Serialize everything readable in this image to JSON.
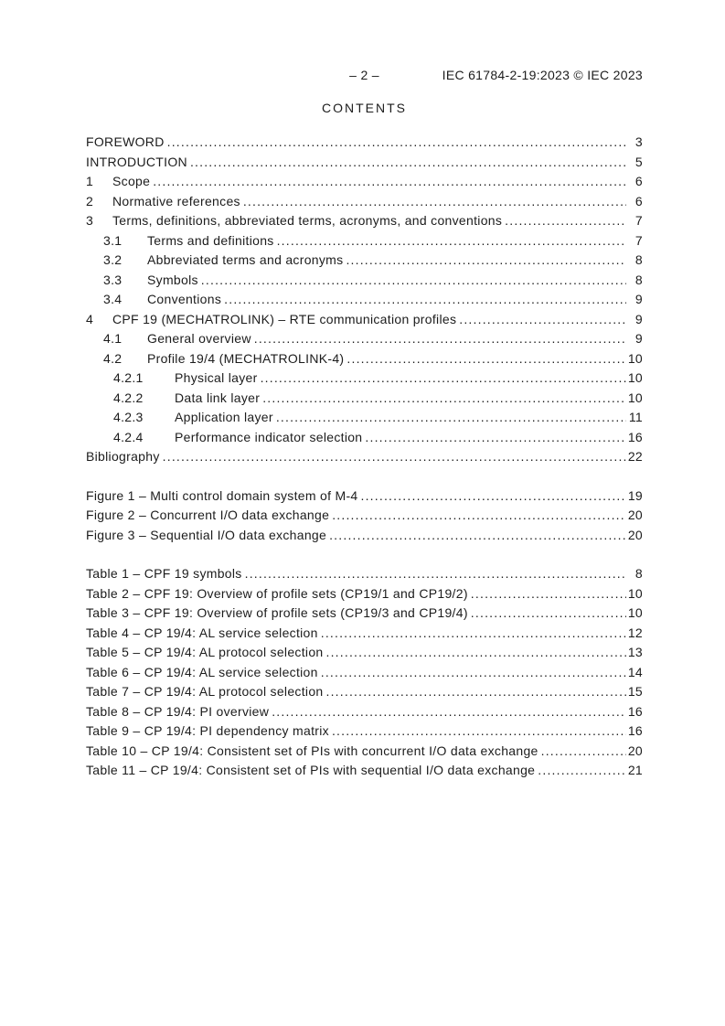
{
  "header": {
    "page_marker": "– 2 –",
    "doc_reference": "IEC 61784-2-19:2023 © IEC 2023"
  },
  "title": "CONTENTS",
  "toc": {
    "main": [
      {
        "level": 0,
        "num": "",
        "title": "FOREWORD",
        "page": "3"
      },
      {
        "level": 0,
        "num": "",
        "title": "INTRODUCTION",
        "page": "5"
      },
      {
        "level": 1,
        "num": "1",
        "title": "Scope",
        "page": "6"
      },
      {
        "level": 1,
        "num": "2",
        "title": "Normative references",
        "page": "6"
      },
      {
        "level": 1,
        "num": "3",
        "title": "Terms, definitions, abbreviated terms, acronyms, and conventions",
        "page": "7"
      },
      {
        "level": 2,
        "num": "3.1",
        "title": "Terms and definitions",
        "page": "7"
      },
      {
        "level": 2,
        "num": "3.2",
        "title": "Abbreviated terms and acronyms",
        "page": "8"
      },
      {
        "level": 2,
        "num": "3.3",
        "title": "Symbols",
        "page": "8"
      },
      {
        "level": 2,
        "num": "3.4",
        "title": "Conventions",
        "page": "9"
      },
      {
        "level": 1,
        "num": "4",
        "title": "CPF 19 (MECHATROLINK) – RTE communication profiles",
        "page": "9"
      },
      {
        "level": 2,
        "num": "4.1",
        "title": "General overview",
        "page": "9"
      },
      {
        "level": 2,
        "num": "4.2",
        "title": "Profile 19/4 (MECHATROLINK-4)",
        "page": "10"
      },
      {
        "level": 3,
        "num": "4.2.1",
        "title": "Physical layer",
        "page": "10"
      },
      {
        "level": 3,
        "num": "4.2.2",
        "title": "Data link layer",
        "page": "10"
      },
      {
        "level": 3,
        "num": "4.2.3",
        "title": "Application layer",
        "page": "11"
      },
      {
        "level": 3,
        "num": "4.2.4",
        "title": "Performance indicator selection",
        "page": "16"
      },
      {
        "level": 0,
        "num": "",
        "title": "Bibliography",
        "page": "22"
      }
    ],
    "figures": [
      {
        "level": 0,
        "num": "",
        "title": "Figure 1 – Multi control domain system of M-4",
        "page": "19"
      },
      {
        "level": 0,
        "num": "",
        "title": "Figure 2 – Concurrent I/O data exchange",
        "page": "20"
      },
      {
        "level": 0,
        "num": "",
        "title": "Figure 3 – Sequential I/O data exchange",
        "page": "20"
      }
    ],
    "tables": [
      {
        "level": 0,
        "num": "",
        "title": "Table 1 – CPF 19 symbols",
        "page": "8"
      },
      {
        "level": 0,
        "num": "",
        "title": "Table 2 – CPF 19: Overview of profile sets (CP19/1 and CP19/2)",
        "page": "10"
      },
      {
        "level": 0,
        "num": "",
        "title": "Table 3 – CPF 19: Overview of profile sets (CP19/3 and CP19/4)",
        "page": "10"
      },
      {
        "level": 0,
        "num": "",
        "title": "Table 4 – CP 19/4: AL service selection",
        "page": "12"
      },
      {
        "level": 0,
        "num": "",
        "title": "Table 5 – CP 19/4: AL protocol selection",
        "page": "13"
      },
      {
        "level": 0,
        "num": "",
        "title": "Table 6 – CP 19/4: AL service selection",
        "page": "14"
      },
      {
        "level": 0,
        "num": "",
        "title": "Table 7 – CP 19/4: AL protocol selection",
        "page": "15"
      },
      {
        "level": 0,
        "num": "",
        "title": "Table 8 – CP 19/4: PI overview",
        "page": "16"
      },
      {
        "level": 0,
        "num": "",
        "title": "Table 9 – CP 19/4: PI dependency matrix",
        "page": "16"
      },
      {
        "level": 0,
        "num": "",
        "title": "Table 10 – CP 19/4: Consistent set of PIs with concurrent I/O data exchange",
        "page": "20"
      },
      {
        "level": 0,
        "num": "",
        "title": "Table 11 – CP 19/4: Consistent set of PIs with sequential I/O data exchange",
        "page": "21"
      }
    ]
  }
}
